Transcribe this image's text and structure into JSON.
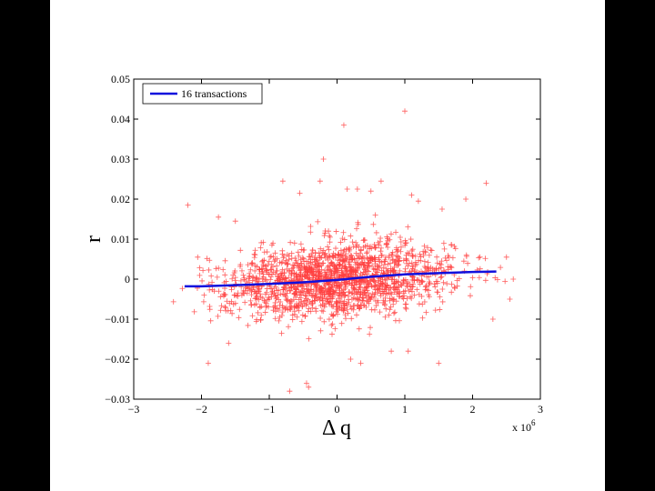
{
  "chart_data": {
    "type": "scatter",
    "xlabel": "Δ q",
    "ylabel": "r",
    "x_multiplier_label": "x 10",
    "x_multiplier_exponent": "6",
    "xlim": [
      -3,
      3
    ],
    "ylim": [
      -0.03,
      0.05
    ],
    "x_ticks": [
      -3,
      -2,
      -1,
      0,
      1,
      2,
      3
    ],
    "x_tick_labels": [
      "−3",
      "−2",
      "−1",
      "0",
      "1",
      "2",
      "3"
    ],
    "y_ticks": [
      -0.03,
      -0.02,
      -0.01,
      0,
      0.01,
      0.02,
      0.03,
      0.04,
      0.05
    ],
    "y_tick_labels": [
      "−0.03",
      "−0.02",
      "−0.01",
      "0",
      "0.01",
      "0.02",
      "0.03",
      "0.04",
      "0.05"
    ],
    "grid": false,
    "legend": {
      "position": "top-left",
      "entries": [
        "16 transactions"
      ]
    },
    "series": [
      {
        "kind": "scatter",
        "marker": "+",
        "color": "#ff4040",
        "x": [
          -2.2,
          -1.9,
          -1.75,
          -1.6,
          -1.5,
          -0.8,
          -0.7,
          -0.55,
          -0.45,
          -0.42,
          -0.25,
          -0.2,
          0.1,
          0.15,
          0.2,
          0.3,
          0.35,
          0.5,
          0.65,
          0.8,
          1.0,
          1.05,
          1.1,
          1.2,
          1.5,
          1.55,
          1.9,
          2.2,
          2.3,
          2.5,
          2.55,
          2.6
        ],
        "y": [
          0.0185,
          -0.021,
          0.0155,
          -0.016,
          0.0145,
          0.0245,
          -0.028,
          0.0215,
          -0.026,
          -0.027,
          0.0245,
          0.03,
          0.0385,
          0.0225,
          -0.02,
          0.0225,
          -0.021,
          0.022,
          0.0245,
          -0.018,
          0.042,
          -0.018,
          0.021,
          0.0195,
          -0.021,
          0.0175,
          0.02,
          0.024,
          -0.01,
          0.0055,
          -0.005,
          0.0
        ],
        "cloud": {
          "count": 1700,
          "x_range": [
            -2.45,
            2.55
          ],
          "center": [
            0.0,
            -0.0005
          ],
          "x_spread": 0.85,
          "y_spread": 0.0048,
          "trend_follows_line": true
        }
      },
      {
        "kind": "line",
        "name": "16 transactions",
        "color": "#1010dd",
        "x": [
          -2.25,
          -2.0,
          -1.5,
          -1.0,
          -0.5,
          0.0,
          0.5,
          1.0,
          1.5,
          2.0,
          2.35
        ],
        "y": [
          -0.0018,
          -0.0018,
          -0.0015,
          -0.0012,
          -0.0008,
          -0.0002,
          0.0006,
          0.0012,
          0.0015,
          0.0018,
          0.0019
        ]
      }
    ]
  }
}
